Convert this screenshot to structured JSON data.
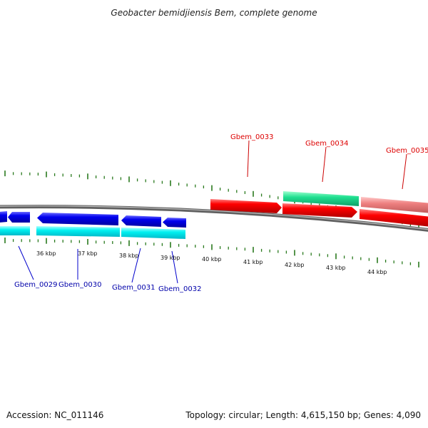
{
  "title": "Geobacter bemidjiensis Bem, complete genome",
  "footer": {
    "accession": "Accession: NC_011146",
    "summary": "Topology: circular; Length: 4,615,150 bp; Genes: 4,090"
  },
  "colors": {
    "backbone": "#7f7f7f",
    "tick": "#2a7a1e",
    "forward_gene_blue": "#0000ee",
    "reverse_gene_cyan": "#00f0f0",
    "forward_gene_green": "#20e090",
    "reverse_gene_red": "#ff0000",
    "pink_gene": "#ee8080",
    "label_blue": "#0000aa",
    "label_red": "#dd0000"
  },
  "scale_labels": [
    "36 kbp",
    "37 kbp",
    "38 kbp",
    "39 kbp",
    "40 kbp",
    "41 kbp",
    "42 kbp",
    "43 kbp",
    "44 kbp"
  ],
  "genes": [
    {
      "id": "Gbem_0029",
      "label": "Gbem_0029",
      "color": "blue"
    },
    {
      "id": "Gbem_0030",
      "label": "Gbem_0030",
      "color": "blue"
    },
    {
      "id": "Gbem_0031",
      "label": "Gbem_0031",
      "color": "blue"
    },
    {
      "id": "Gbem_0032",
      "label": "Gbem_0032",
      "color": "blue"
    },
    {
      "id": "Gbem_0033",
      "label": "Gbem_0033",
      "color": "red"
    },
    {
      "id": "Gbem_0034",
      "label": "Gbem_0034",
      "color": "red"
    },
    {
      "id": "Gbem_0035",
      "label": "Gbem_0035",
      "color": "red"
    }
  ]
}
